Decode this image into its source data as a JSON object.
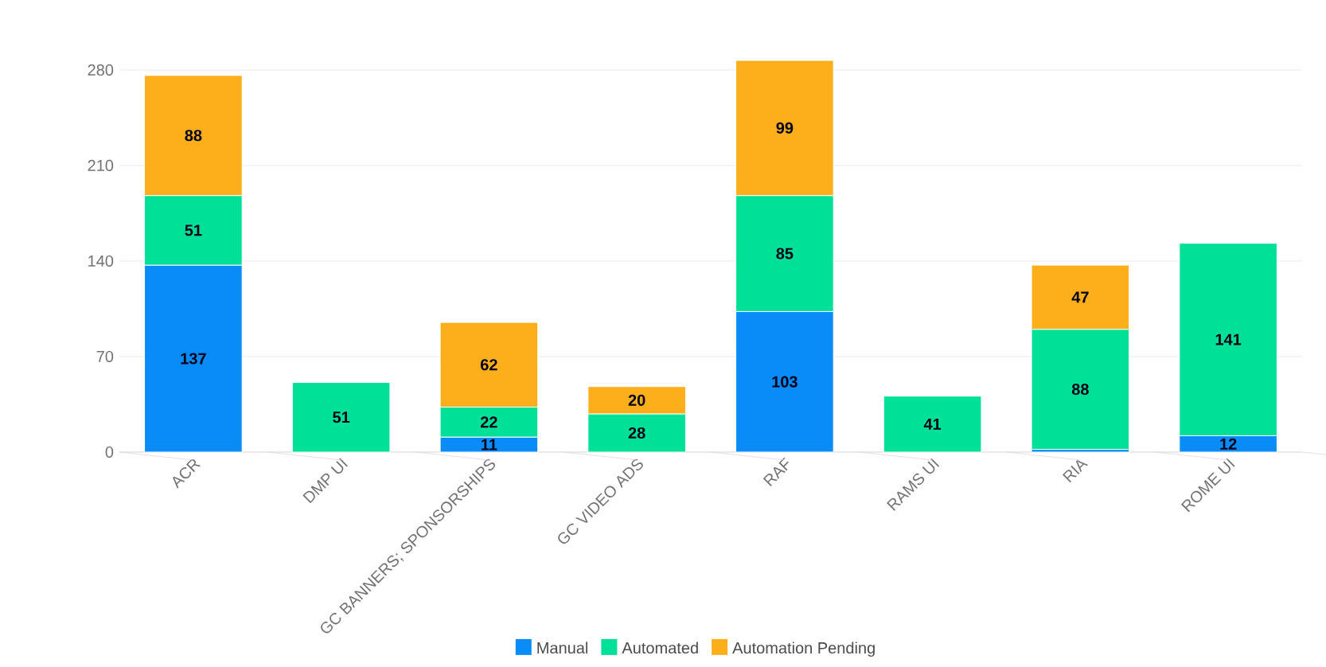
{
  "chart_data": {
    "type": "bar",
    "stacked": true,
    "categories": [
      "ACR",
      "DMP UI",
      "GC BANNERS; SPONSORSHIPS",
      "GC VIDEO ADS",
      "RAF",
      "RAMS UI",
      "RIA",
      "ROME UI"
    ],
    "series": [
      {
        "name": "Manual",
        "color": "#0a8cf8",
        "values": [
          137,
          null,
          11,
          null,
          103,
          null,
          2,
          12
        ],
        "value_labels": [
          "137",
          null,
          "11",
          null,
          "103",
          null,
          null,
          "12"
        ]
      },
      {
        "name": "Automated",
        "color": "#00e096",
        "values": [
          51,
          51,
          22,
          28,
          85,
          41,
          88,
          141
        ],
        "value_labels": [
          "51",
          "51",
          "22",
          "28",
          "85",
          "41",
          "88",
          "141"
        ]
      },
      {
        "name": "Automation Pending",
        "color": "#fdae1b",
        "values": [
          88,
          null,
          62,
          20,
          99,
          null,
          47,
          null
        ],
        "value_labels": [
          "88",
          null,
          "62",
          "20",
          "99",
          null,
          "47",
          null
        ]
      }
    ],
    "ylim": [
      0,
      290
    ],
    "yticks": [
      0,
      70,
      140,
      210,
      280
    ],
    "grid": "y",
    "legend": "bottom"
  }
}
